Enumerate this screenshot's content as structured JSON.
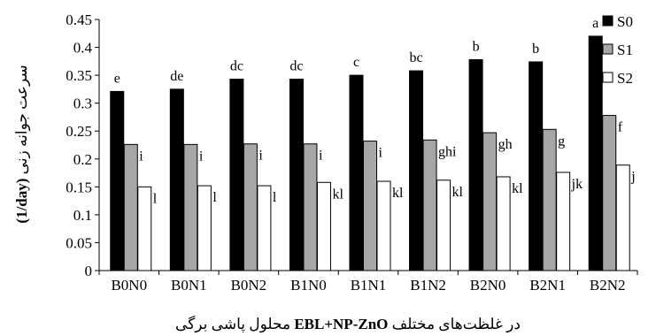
{
  "chart_data": {
    "type": "bar",
    "ylabel": "سرعت جوانه زنی (1/day)",
    "xlabel": "محلول پاشی برگی EBL+NP-ZnO در غلظت‌های مختلف",
    "xlabel_parts": {
      "pre": "محلول پاشی برگی  ",
      "bold": "EBL+NP-ZnO",
      "post": " در غلظت‌های مختلف"
    },
    "ylabel_parts": {
      "bold": "(1/day)",
      "post": " سرعت جوانه زنی"
    },
    "ylim": [
      0,
      0.45
    ],
    "yticks": [
      "0",
      "0.05",
      "0.1",
      "0.15",
      "0.2",
      "0.25",
      "0.3",
      "0.35",
      "0.4",
      "0.45"
    ],
    "grid": false,
    "legend_position": "top-right",
    "categories": [
      "B0N0",
      "B0N1",
      "B0N2",
      "B1N0",
      "B1N1",
      "B1N2",
      "B2N0",
      "B2N1",
      "B2N2"
    ],
    "series": [
      {
        "name": "S0",
        "color": "#000000",
        "values": [
          0.321,
          0.325,
          0.343,
          0.343,
          0.35,
          0.358,
          0.378,
          0.374,
          0.42
        ],
        "letters": [
          "e",
          "de",
          "dc",
          "dc",
          "c",
          "bc",
          "b",
          "b",
          "a"
        ]
      },
      {
        "name": "S1",
        "color": "#a6a6a6",
        "values": [
          0.226,
          0.226,
          0.227,
          0.227,
          0.232,
          0.234,
          0.247,
          0.253,
          0.278
        ],
        "letters": [
          "i",
          "i",
          "i",
          "i",
          "i",
          "ghi",
          "gh",
          "g",
          "f"
        ]
      },
      {
        "name": "S2",
        "color": "#ffffff",
        "values": [
          0.15,
          0.152,
          0.152,
          0.158,
          0.16,
          0.162,
          0.168,
          0.176,
          0.189
        ],
        "letters": [
          "l",
          "l",
          "l",
          "kl",
          "kl",
          "kl",
          "kl",
          "jk",
          "j"
        ]
      }
    ]
  }
}
